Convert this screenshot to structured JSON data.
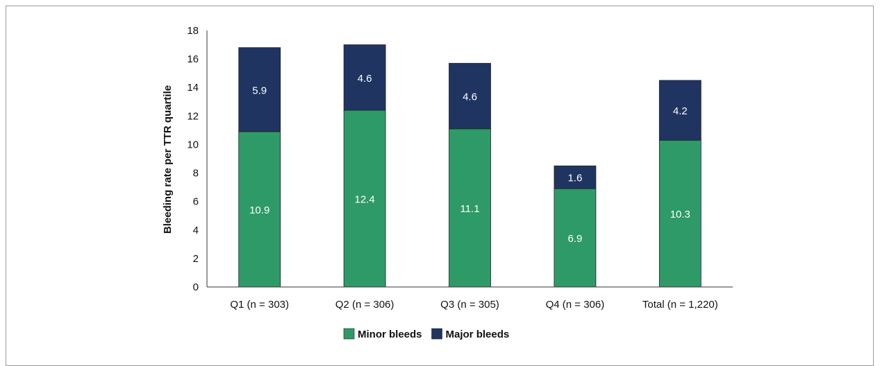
{
  "chart_data": {
    "type": "bar",
    "stacked": true,
    "categories": [
      "Q1 (n = 303)",
      "Q2 (n = 306)",
      "Q3 (n = 305)",
      "Q4 (n = 306)",
      "Total (n = 1,220)"
    ],
    "series": [
      {
        "name": "Minor bleeds",
        "values": [
          10.9,
          12.4,
          11.1,
          6.9,
          10.3
        ],
        "color": "#2e9a67"
      },
      {
        "name": "Major bleeds",
        "values": [
          5.9,
          4.6,
          4.6,
          1.6,
          4.2
        ],
        "color": "#1f3461"
      }
    ],
    "ylabel": "Bleeding rate per TTR quartile",
    "xlabel": "",
    "ylim": [
      0,
      18
    ],
    "yticks": [
      "0",
      "2",
      "4",
      "6",
      "8",
      "10",
      "12",
      "14",
      "16",
      "18"
    ],
    "grid": false,
    "legend": "bottom-center"
  }
}
